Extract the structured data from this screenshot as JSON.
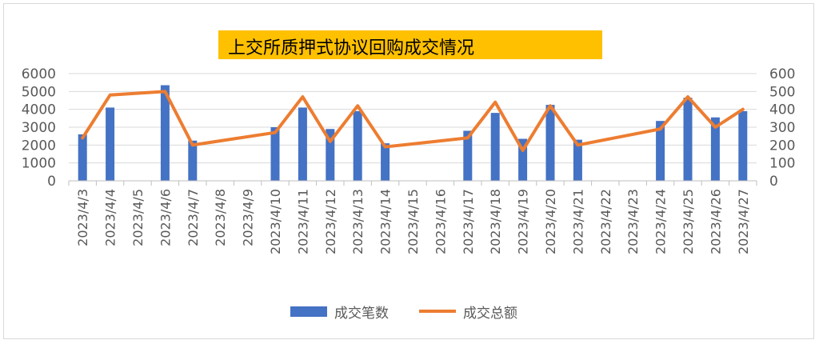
{
  "chart_data": {
    "type": "bar+line",
    "title": "上交所质押式协议回购成交情况",
    "categories": [
      "2023/4/3",
      "2023/4/4",
      "2023/4/5",
      "2023/4/6",
      "2023/4/7",
      "2023/4/8",
      "2023/4/9",
      "2023/4/10",
      "2023/4/11",
      "2023/4/12",
      "2023/4/13",
      "2023/4/14",
      "2023/4/15",
      "2023/4/16",
      "2023/4/17",
      "2023/4/18",
      "2023/4/19",
      "2023/4/20",
      "2023/4/21",
      "2023/4/22",
      "2023/4/23",
      "2023/4/24",
      "2023/4/25",
      "2023/4/26",
      "2023/4/27"
    ],
    "series": [
      {
        "name": "成交笔数",
        "type": "bar",
        "axis": "left",
        "color": "#4472c4",
        "values": [
          2600,
          4100,
          null,
          5350,
          2250,
          null,
          null,
          3000,
          4100,
          2900,
          3900,
          2100,
          null,
          null,
          2800,
          3800,
          2350,
          4250,
          2300,
          null,
          null,
          3350,
          4650,
          3550,
          3900
        ]
      },
      {
        "name": "成交总额",
        "type": "line",
        "axis": "right",
        "color": "#ed7d31",
        "values": [
          240,
          480,
          null,
          500,
          200,
          null,
          null,
          270,
          470,
          220,
          420,
          190,
          null,
          null,
          240,
          440,
          170,
          420,
          200,
          null,
          null,
          290,
          470,
          300,
          400
        ]
      }
    ],
    "ylim_left": [
      0,
      6000
    ],
    "yticks_left": [
      "0",
      "1000",
      "2000",
      "3000",
      "4000",
      "5000",
      "6000"
    ],
    "ylim_right": [
      0,
      600
    ],
    "yticks_right": [
      "0",
      "100",
      "200",
      "300",
      "400",
      "500",
      "600"
    ],
    "grid": true,
    "legend_position": "bottom"
  }
}
